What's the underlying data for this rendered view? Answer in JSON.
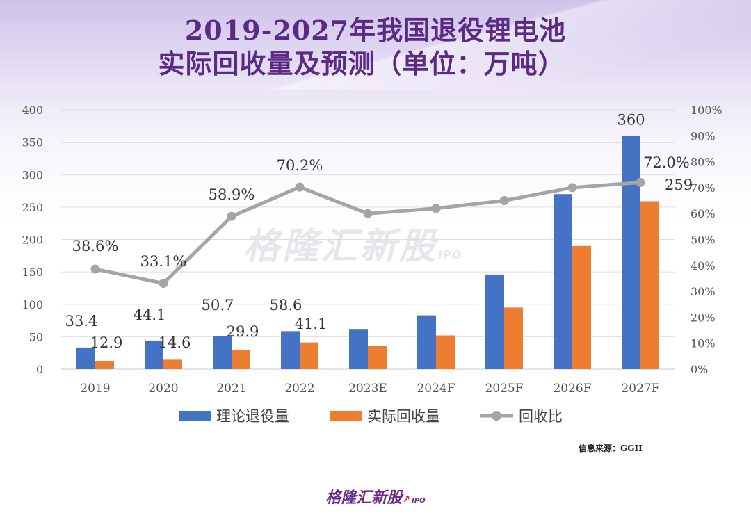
{
  "title_line1": "2019-2027年我国退役锂电池",
  "title_line2": "实际回收量及预测（单位：万吨）",
  "source": "信息来源：GGII",
  "watermark": "格隆汇新股",
  "watermark_ipo": "IPO",
  "footer_logo": "格隆汇新股",
  "footer_ipo": "IPO",
  "chart_data": {
    "type": "bar",
    "categories": [
      "2019",
      "2020",
      "2021",
      "2022",
      "2023E",
      "2024F",
      "2025F",
      "2026F",
      "2027F"
    ],
    "series": [
      {
        "name": "理论退役量",
        "type": "bar",
        "axis": "left",
        "color": "#4472c4",
        "values": [
          33.4,
          44.1,
          50.7,
          58.6,
          62,
          83,
          146,
          270,
          360
        ],
        "labels": [
          "33.4",
          "44.1",
          "50.7",
          "58.6",
          "",
          "",
          "",
          "",
          "360"
        ]
      },
      {
        "name": "实际回收量",
        "type": "bar",
        "axis": "left",
        "color": "#ed7d31",
        "values": [
          12.9,
          14.6,
          29.9,
          41.1,
          36,
          52,
          95,
          190,
          259
        ],
        "labels": [
          "12.9",
          "14.6",
          "29.9",
          "41.1",
          "",
          "",
          "",
          "",
          "259"
        ]
      },
      {
        "name": "回收比",
        "type": "line",
        "axis": "right",
        "color": "#a5a5a5",
        "values": [
          38.6,
          33.1,
          58.9,
          70.2,
          60,
          62,
          65,
          70,
          72.0
        ],
        "labels": [
          "38.6%",
          "33.1%",
          "58.9%",
          "70.2%",
          "",
          "",
          "",
          "",
          "72.0%"
        ]
      }
    ],
    "y_left": {
      "min": 0,
      "max": 400,
      "ticks": [
        "0",
        "50",
        "100",
        "150",
        "200",
        "250",
        "300",
        "350",
        "400"
      ]
    },
    "y_right": {
      "min": 0,
      "max": 100,
      "ticks": [
        "0%",
        "10%",
        "20%",
        "30%",
        "40%",
        "50%",
        "60%",
        "70%",
        "80%",
        "90%",
        "100%"
      ]
    },
    "grid": true,
    "legend": "bottom"
  }
}
